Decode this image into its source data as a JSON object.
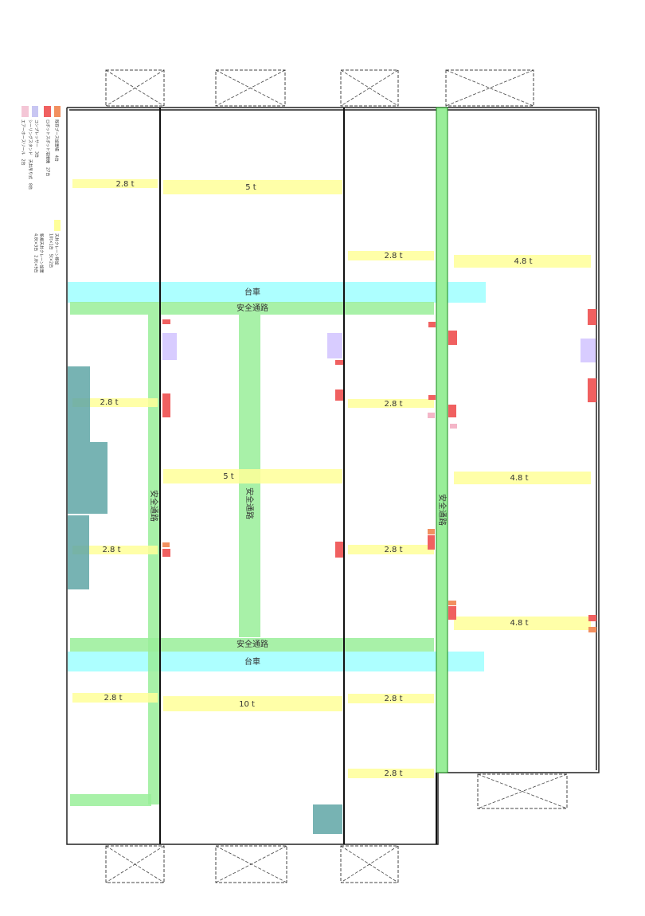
{
  "legend": {
    "equipment": [
      "既存ブース設置場　4台",
      "ロボットスポット溶接機　27台",
      "コンプレッサー　3台",
      "シーリングスタンド　天井吊り式　8台",
      "エアーホースリール　2台"
    ],
    "cranes": [
      "天井クレーン移設",
      "10t×1台　5t×2台",
      "新規天井クレーン設置",
      "4.8t×3台　2.8t×9台"
    ]
  },
  "cranes": [
    "2.8 t",
    "5 t",
    "2.8 t",
    "4.8 t",
    "2.8 t",
    "2.8 t",
    "5 t",
    "4.8 t",
    "2.8 t",
    "2.8 t",
    "4.8 t",
    "2.8 t",
    "10 t",
    "2.8 t",
    "2.8 t"
  ],
  "carts": [
    "台車",
    "台車"
  ],
  "aisles": [
    "安全通路",
    "安全通路",
    "安全通路",
    "安全通路",
    "安全通路"
  ]
}
